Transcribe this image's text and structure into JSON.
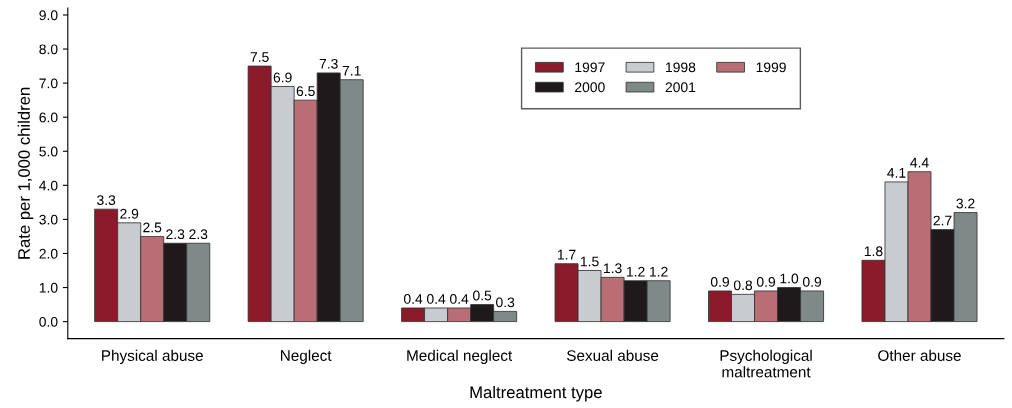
{
  "chart_data": {
    "type": "bar",
    "xlabel": "Maltreatment type",
    "ylabel": "Rate per 1,000 children",
    "categories": [
      "Physical abuse",
      "Neglect",
      "Medical neglect",
      "Sexual abuse",
      "Psychological\nmaltreatment",
      "Other abuse"
    ],
    "series": [
      {
        "name": "1997",
        "color": "#8b1a2b",
        "values": [
          3.3,
          7.5,
          0.4,
          1.7,
          0.9,
          1.8
        ],
        "value_labels": [
          "3.3",
          "7.5",
          "0.4",
          "1.7",
          "0.9",
          "1.8"
        ]
      },
      {
        "name": "1998",
        "color": "#c8ccd0",
        "values": [
          2.9,
          6.9,
          0.4,
          1.5,
          0.8,
          4.1
        ],
        "value_labels": [
          "2.9",
          "6.9",
          "0.4",
          "1.5",
          "0.8",
          "4.1"
        ]
      },
      {
        "name": "1999",
        "color": "#b86e74",
        "values": [
          2.5,
          6.5,
          0.4,
          1.3,
          0.9,
          4.4
        ],
        "value_labels": [
          "2.5",
          "6.5",
          "0.4",
          "1.3",
          "0.9",
          "4.4"
        ]
      },
      {
        "name": "2000",
        "color": "#1e1a1c",
        "values": [
          2.3,
          7.3,
          0.5,
          1.2,
          1.0,
          2.7
        ],
        "value_labels": [
          "2.3",
          "7.3",
          "0.5",
          "1.2",
          "1.0",
          "2.7"
        ]
      },
      {
        "name": "2001",
        "color": "#7f8a88",
        "values": [
          2.3,
          7.1,
          0.3,
          1.2,
          0.9,
          3.2
        ],
        "value_labels": [
          "2.3",
          "7.1",
          "0.3",
          "1.2",
          "0.9",
          "3.2"
        ]
      }
    ],
    "ylim": [
      -0.5,
      9.2
    ],
    "yticks": [
      {
        "value": 0,
        "label": "0.0"
      },
      {
        "value": 1,
        "label": "1.0"
      },
      {
        "value": 2,
        "label": "2.0"
      },
      {
        "value": 3,
        "label": "3.0"
      },
      {
        "value": 4,
        "label": "4.0"
      },
      {
        "value": 5,
        "label": "5.0"
      },
      {
        "value": 6,
        "label": "6.0"
      },
      {
        "value": 7,
        "label": "7.0"
      },
      {
        "value": 8,
        "label": "8.0"
      },
      {
        "value": 9,
        "label": "9.0"
      }
    ],
    "grid": false,
    "legend": "top right"
  }
}
